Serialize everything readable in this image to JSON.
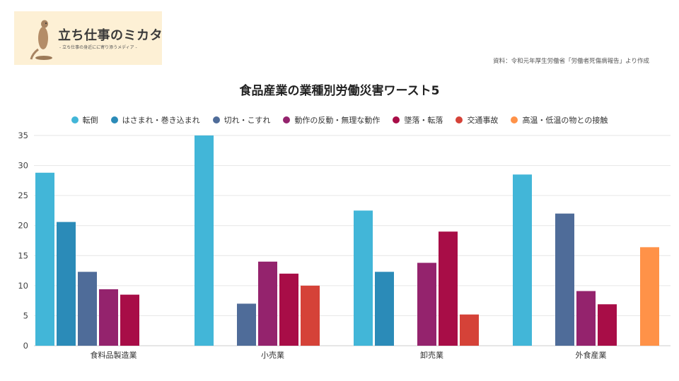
{
  "logo": {
    "title": "立ち仕事のミカタ",
    "tagline": "- 立ち仕事の身近にに寄り添うメディア -"
  },
  "source_note": "資料：令和元年厚生労働省「労働者死傷病報告」より作成",
  "colors": {
    "転倒": "#42b6d8",
    "はさまれ・巻き込まれ": "#2b8bb8",
    "切れ・こすれ": "#4f6c99",
    "動作の反動・無理な動作": "#94236d",
    "墜落・転落": "#a80d47",
    "交通事故": "#d54238",
    "高温・低温の物との接触": "#ff9248"
  },
  "chart_data": {
    "type": "bar",
    "title": "食品産業の業種別労働災害ワースト5",
    "categories": [
      "食料品製造業",
      "小売業",
      "卸売業",
      "外食産業"
    ],
    "series": [
      {
        "name": "転倒",
        "values": [
          28.8,
          35,
          22.5,
          28.5
        ]
      },
      {
        "name": "はさまれ・巻き込まれ",
        "values": [
          20.6,
          null,
          12.3,
          null
        ]
      },
      {
        "name": "切れ・こすれ",
        "values": [
          12.3,
          7,
          null,
          22
        ]
      },
      {
        "name": "動作の反動・無理な動作",
        "values": [
          9.4,
          14,
          13.8,
          9.1
        ]
      },
      {
        "name": "墜落・転落",
        "values": [
          8.5,
          12,
          19,
          6.9
        ]
      },
      {
        "name": "交通事故",
        "values": [
          null,
          10,
          5.2,
          null
        ]
      },
      {
        "name": "高温・低温の物との接触",
        "values": [
          null,
          null,
          null,
          16.4
        ]
      }
    ],
    "yticks": [
      "0",
      "5",
      "10",
      "15",
      "20",
      "25",
      "30",
      "35"
    ],
    "ylim": [
      0,
      35
    ],
    "grid": true,
    "legend_position": "top"
  }
}
